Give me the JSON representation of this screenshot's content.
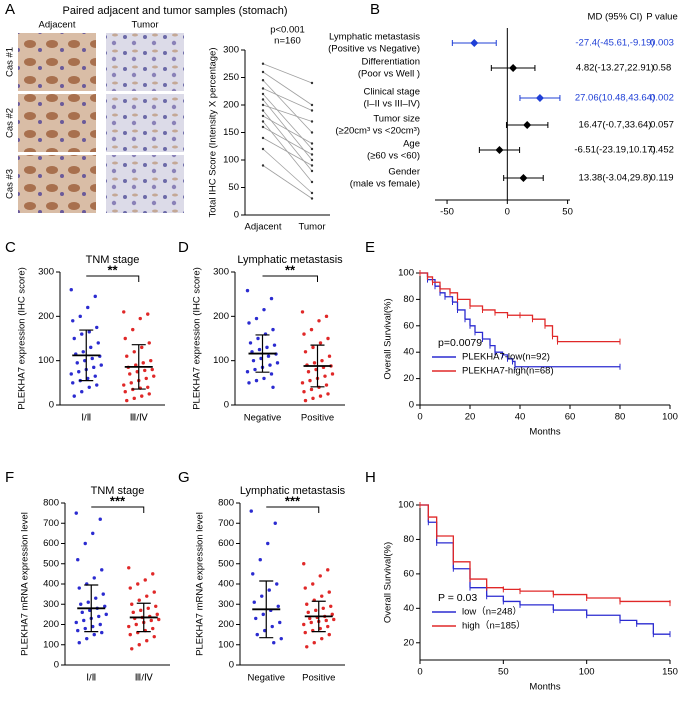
{
  "chart_data": [
    {
      "type": "paired",
      "panel": "A",
      "title": "Paired adjacent and tumor samples (stomach)",
      "image_columns": [
        "Adjacent",
        "Tumor"
      ],
      "image_rows": [
        "Cas #1",
        "Cas #2",
        "Cas #3"
      ],
      "annotations": [
        "p<0.001",
        "n=160"
      ],
      "ylabel": "Total IHC Score (Intensity X percentage)",
      "categories": [
        "Adjacent",
        "Tumor"
      ],
      "values": [
        [
          275,
          260,
          245,
          230,
          220,
          210,
          200,
          190,
          180,
          170,
          160,
          140,
          120,
          90
        ],
        [
          240,
          200,
          150,
          190,
          120,
          100,
          170,
          80,
          130,
          60,
          110,
          90,
          40,
          30
        ]
      ],
      "color": "#a0a0a0",
      "ylim": [
        0,
        300
      ],
      "yticks": [
        0,
        50,
        100,
        150,
        200,
        250,
        300
      ]
    },
    {
      "type": "forest",
      "panel": "B",
      "headers": [
        "MD (95% CI)",
        "P value"
      ],
      "labels": [
        [
          "Lymphatic metastasis",
          "(Positive vs Negative)"
        ],
        [
          "Differentiation",
          "(Poor vs Well )"
        ],
        [
          "Clinical stage",
          "(I–II vs III–IV)"
        ],
        [
          "Tumor size",
          "(≥20cm³ vs <20cm³)"
        ],
        [
          "Age",
          "(≥60 vs <60)"
        ],
        [
          "Gender",
          "(male vs female)"
        ]
      ],
      "values": [
        -27.4,
        4.82,
        27.06,
        16.47,
        -6.51,
        13.38
      ],
      "ci_low": [
        -45.61,
        -13.27,
        10.48,
        -0.7,
        -23.19,
        -3.04
      ],
      "ci_high": [
        -9.19,
        22.91,
        43.64,
        33.64,
        10.17,
        29.8
      ],
      "value_labels": [
        "-27.4(-45.61,-9.19)",
        "4.82(-13.27,22.91)",
        "27.06(10.48,43.64)",
        "16.47(-0.7,33.64)",
        "-6.51(-23.19,10.17)",
        "13.38(-3.04,29.8)"
      ],
      "p_values": [
        0.003,
        0.58,
        0.002,
        0.057,
        0.452,
        0.119
      ],
      "colors": [
        "#1f3fd6",
        "#000000",
        "#1f3fd6",
        "#000000",
        "#000000",
        "#000000"
      ],
      "xlim": [
        -60,
        52
      ],
      "xticks": [
        -50,
        0,
        50
      ]
    },
    {
      "type": "dot",
      "panel": "C",
      "title": "TNM stage",
      "ylabel": "PLEKHA7 expression (IHC score)",
      "categories": [
        "Ⅰ/Ⅱ",
        "Ⅲ/Ⅳ"
      ],
      "colors": [
        "#2b2bd0",
        "#e02828"
      ],
      "points": [
        [
          260,
          245,
          220,
          200,
          190,
          175,
          165,
          160,
          150,
          140,
          130,
          120,
          115,
          110,
          105,
          100,
          95,
          90,
          85,
          80,
          75,
          70,
          65,
          60,
          55,
          50,
          45,
          40,
          30,
          20
        ],
        [
          210,
          205,
          195,
          170,
          150,
          140,
          130,
          120,
          110,
          100,
          95,
          90,
          85,
          80,
          78,
          75,
          70,
          65,
          60,
          55,
          50,
          45,
          40,
          38,
          35,
          30,
          25,
          20,
          15,
          10
        ]
      ],
      "means": [
        112,
        86
      ],
      "sds": [
        57,
        50
      ],
      "significance": "**",
      "ylim": [
        0,
        300
      ],
      "yticks": [
        0,
        100,
        200,
        300
      ]
    },
    {
      "type": "dot",
      "panel": "D",
      "title": "Lymphatic metastasis",
      "ylabel": "PLEKHA7 expression (IHC score)",
      "categories": [
        "Negative",
        "Positive"
      ],
      "colors": [
        "#2b2bd0",
        "#e02828"
      ],
      "points": [
        [
          258,
          240,
          215,
          195,
          185,
          170,
          160,
          150,
          140,
          135,
          130,
          125,
          120,
          115,
          110,
          105,
          100,
          95,
          90,
          85,
          80,
          75,
          70,
          60,
          55,
          50,
          40
        ],
        [
          210,
          200,
          190,
          170,
          160,
          150,
          140,
          130,
          120,
          110,
          100,
          95,
          90,
          88,
          85,
          80,
          75,
          70,
          65,
          60,
          55,
          50,
          45,
          40,
          35,
          30,
          25,
          20,
          15,
          10
        ]
      ],
      "means": [
        116,
        88
      ],
      "sds": [
        42,
        47
      ],
      "significance": "**",
      "ylim": [
        0,
        300
      ],
      "yticks": [
        0,
        100,
        200,
        300
      ]
    },
    {
      "type": "km",
      "panel": "E",
      "ylabel": "Overall Survival(%)",
      "xlabel": "Months",
      "annotation": "p=0.0079",
      "series": [
        {
          "name": "PLEKHA7-low(n=92)",
          "color": "#2b2bd0",
          "x": [
            0,
            3,
            6,
            8,
            10,
            13,
            15,
            18,
            20,
            22,
            25,
            28,
            30,
            33,
            35,
            37,
            38,
            80
          ],
          "values": [
            100,
            95,
            90,
            85,
            82,
            78,
            72,
            65,
            60,
            55,
            50,
            45,
            40,
            38,
            35,
            33,
            29,
            29
          ]
        },
        {
          "name": "PLEKHA7-high(n=68)",
          "color": "#e02828",
          "x": [
            0,
            3,
            5,
            8,
            12,
            15,
            20,
            25,
            30,
            35,
            40,
            45,
            50,
            53,
            55,
            80
          ],
          "values": [
            100,
            97,
            93,
            88,
            85,
            80,
            75,
            72,
            70,
            68,
            68,
            65,
            60,
            52,
            48,
            48
          ]
        }
      ],
      "xlim": [
        0,
        100
      ],
      "xticks": [
        0,
        20,
        40,
        60,
        80,
        100
      ],
      "ylim": [
        0,
        100
      ],
      "yticks": [
        0,
        20,
        40,
        60,
        80,
        100
      ]
    },
    {
      "type": "dot",
      "panel": "F",
      "title": "TNM stage",
      "ylabel": "PLEKHA7 mRNA  expression level",
      "categories": [
        "Ⅰ/Ⅱ",
        "Ⅲ/Ⅳ"
      ],
      "colors": [
        "#2b2bd0",
        "#e02828"
      ],
      "points": [
        [
          750,
          720,
          650,
          600,
          520,
          470,
          430,
          400,
          380,
          350,
          330,
          310,
          300,
          290,
          280,
          270,
          260,
          250,
          240,
          230,
          220,
          210,
          200,
          190,
          180,
          170,
          160,
          150,
          130,
          110
        ],
        [
          480,
          450,
          420,
          400,
          380,
          360,
          340,
          320,
          300,
          290,
          280,
          270,
          260,
          250,
          240,
          235,
          230,
          225,
          220,
          210,
          200,
          190,
          180,
          170,
          160,
          150,
          140,
          120,
          100,
          80
        ]
      ],
      "means": [
        280,
        235
      ],
      "sds": [
        115,
        70
      ],
      "significance": "***",
      "ylim": [
        0,
        800
      ],
      "yticks": [
        0,
        100,
        200,
        300,
        400,
        500,
        600,
        700,
        800
      ]
    },
    {
      "type": "dot",
      "panel": "G",
      "title": "Lymphatic metastasis",
      "ylabel": "PLEKHA7 mRNA expression level",
      "categories": [
        "Negative",
        "Positive"
      ],
      "colors": [
        "#2b2bd0",
        "#e02828"
      ],
      "points": [
        [
          760,
          700,
          600,
          520,
          450,
          400,
          370,
          340,
          310,
          290,
          270,
          250,
          230,
          210,
          190,
          170,
          150,
          130,
          110
        ],
        [
          500,
          470,
          440,
          400,
          380,
          360,
          340,
          320,
          300,
          290,
          280,
          270,
          260,
          250,
          240,
          235,
          230,
          225,
          220,
          215,
          210,
          200,
          190,
          180,
          170,
          160,
          150,
          130,
          110,
          90
        ]
      ],
      "means": [
        275,
        240
      ],
      "sds": [
        140,
        75
      ],
      "significance": "***",
      "ylim": [
        0,
        800
      ],
      "yticks": [
        0,
        100,
        200,
        300,
        400,
        500,
        600,
        700,
        800
      ]
    },
    {
      "type": "km",
      "panel": "H",
      "ylabel": "Overall Survival(%)",
      "xlabel": "Months",
      "annotation": "P = 0.03",
      "series": [
        {
          "name": "low（n=248）",
          "color": "#2b2bd0",
          "x": [
            0,
            5,
            10,
            20,
            30,
            40,
            50,
            60,
            80,
            100,
            120,
            130,
            140,
            150
          ],
          "values": [
            100,
            90,
            78,
            63,
            52,
            47,
            44,
            42,
            39,
            36,
            33,
            31,
            25,
            25
          ]
        },
        {
          "name": "high（n=185）",
          "color": "#e02828",
          "x": [
            0,
            5,
            10,
            20,
            30,
            40,
            50,
            60,
            80,
            100,
            120,
            150
          ],
          "values": [
            100,
            93,
            82,
            67,
            57,
            52,
            51,
            50,
            48,
            46,
            44,
            43
          ]
        }
      ],
      "xlim": [
        0,
        150
      ],
      "xticks": [
        0,
        50,
        100,
        150
      ],
      "ylim": [
        10,
        100
      ],
      "yticks": [
        20,
        40,
        60,
        80,
        100
      ]
    }
  ]
}
